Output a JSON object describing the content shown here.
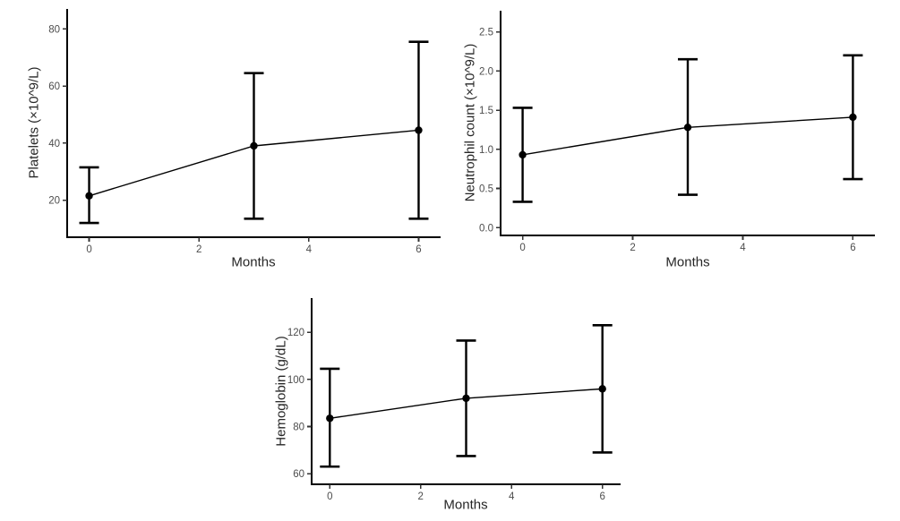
{
  "page": {
    "background": "#ffffff",
    "description": "Three error-bar line charts of blood counts over months of follow-up"
  },
  "chart_data": [
    {
      "id": "platelets",
      "type": "line",
      "title": "",
      "xlabel": "Months",
      "ylabel": "Platelets (×10^9/L)",
      "x": [
        0,
        3,
        6
      ],
      "series": [
        {
          "name": "mean",
          "values": [
            21.5,
            39,
            44.5
          ]
        }
      ],
      "error_low": [
        12,
        13.5,
        13.5
      ],
      "error_high": [
        31.5,
        64.5,
        75.5
      ],
      "xticks": {
        "values": [
          0,
          2,
          4,
          6
        ],
        "labels": [
          "0",
          "2",
          "4",
          "6"
        ]
      },
      "yticks": {
        "values": [
          20,
          40,
          60,
          80
        ],
        "labels": [
          "20",
          "40",
          "60",
          "80"
        ]
      },
      "xlim": [
        -0.4,
        6.4
      ],
      "ylim": [
        7,
        87
      ],
      "grid": false,
      "legend": "none",
      "colors": {
        "line": "#000000",
        "point": "#000000",
        "error_bar": "#000000",
        "axis": "#000000",
        "tick_label": "#4d4d4d",
        "axis_title": "#262626"
      }
    },
    {
      "id": "neutrophil",
      "type": "line",
      "title": "",
      "xlabel": "Months",
      "ylabel": "Neutrophil count (×10^9/L)",
      "x": [
        0,
        3,
        6
      ],
      "series": [
        {
          "name": "mean",
          "values": [
            0.93,
            1.28,
            1.41
          ]
        }
      ],
      "error_low": [
        0.33,
        0.42,
        0.62
      ],
      "error_high": [
        1.53,
        2.15,
        2.2
      ],
      "xticks": {
        "values": [
          0,
          2,
          4,
          6
        ],
        "labels": [
          "0",
          "2",
          "4",
          "6"
        ]
      },
      "yticks": {
        "values": [
          0,
          0.5,
          1,
          1.5,
          2,
          2.5
        ],
        "labels": [
          "0.0",
          "0.5",
          "1.0",
          "1.5",
          "2.0",
          "2.5"
        ]
      },
      "xlim": [
        -0.4,
        6.4
      ],
      "ylim": [
        -0.1,
        2.77
      ],
      "grid": false,
      "legend": "none",
      "colors": {
        "line": "#000000",
        "point": "#000000",
        "error_bar": "#000000",
        "axis": "#000000",
        "tick_label": "#4d4d4d",
        "axis_title": "#262626"
      }
    },
    {
      "id": "hemoglobin",
      "type": "line",
      "title": "",
      "xlabel": "Months",
      "ylabel": "Hemoglobin (g/dL)",
      "x": [
        0,
        3,
        6
      ],
      "series": [
        {
          "name": "mean",
          "values": [
            83.5,
            92,
            96
          ]
        }
      ],
      "error_low": [
        63,
        67.5,
        69
      ],
      "error_high": [
        104.5,
        116.5,
        123
      ],
      "xticks": {
        "values": [
          0,
          2,
          4,
          6
        ],
        "labels": [
          "0",
          "2",
          "4",
          "6"
        ]
      },
      "yticks": {
        "values": [
          60,
          80,
          100,
          120
        ],
        "labels": [
          "60",
          "80",
          "100",
          "120"
        ]
      },
      "xlim": [
        -0.4,
        6.4
      ],
      "ylim": [
        55.5,
        134.5
      ],
      "grid": false,
      "legend": "none",
      "colors": {
        "line": "#000000",
        "point": "#000000",
        "error_bar": "#000000",
        "axis": "#000000",
        "tick_label": "#4d4d4d",
        "axis_title": "#262626"
      }
    }
  ]
}
